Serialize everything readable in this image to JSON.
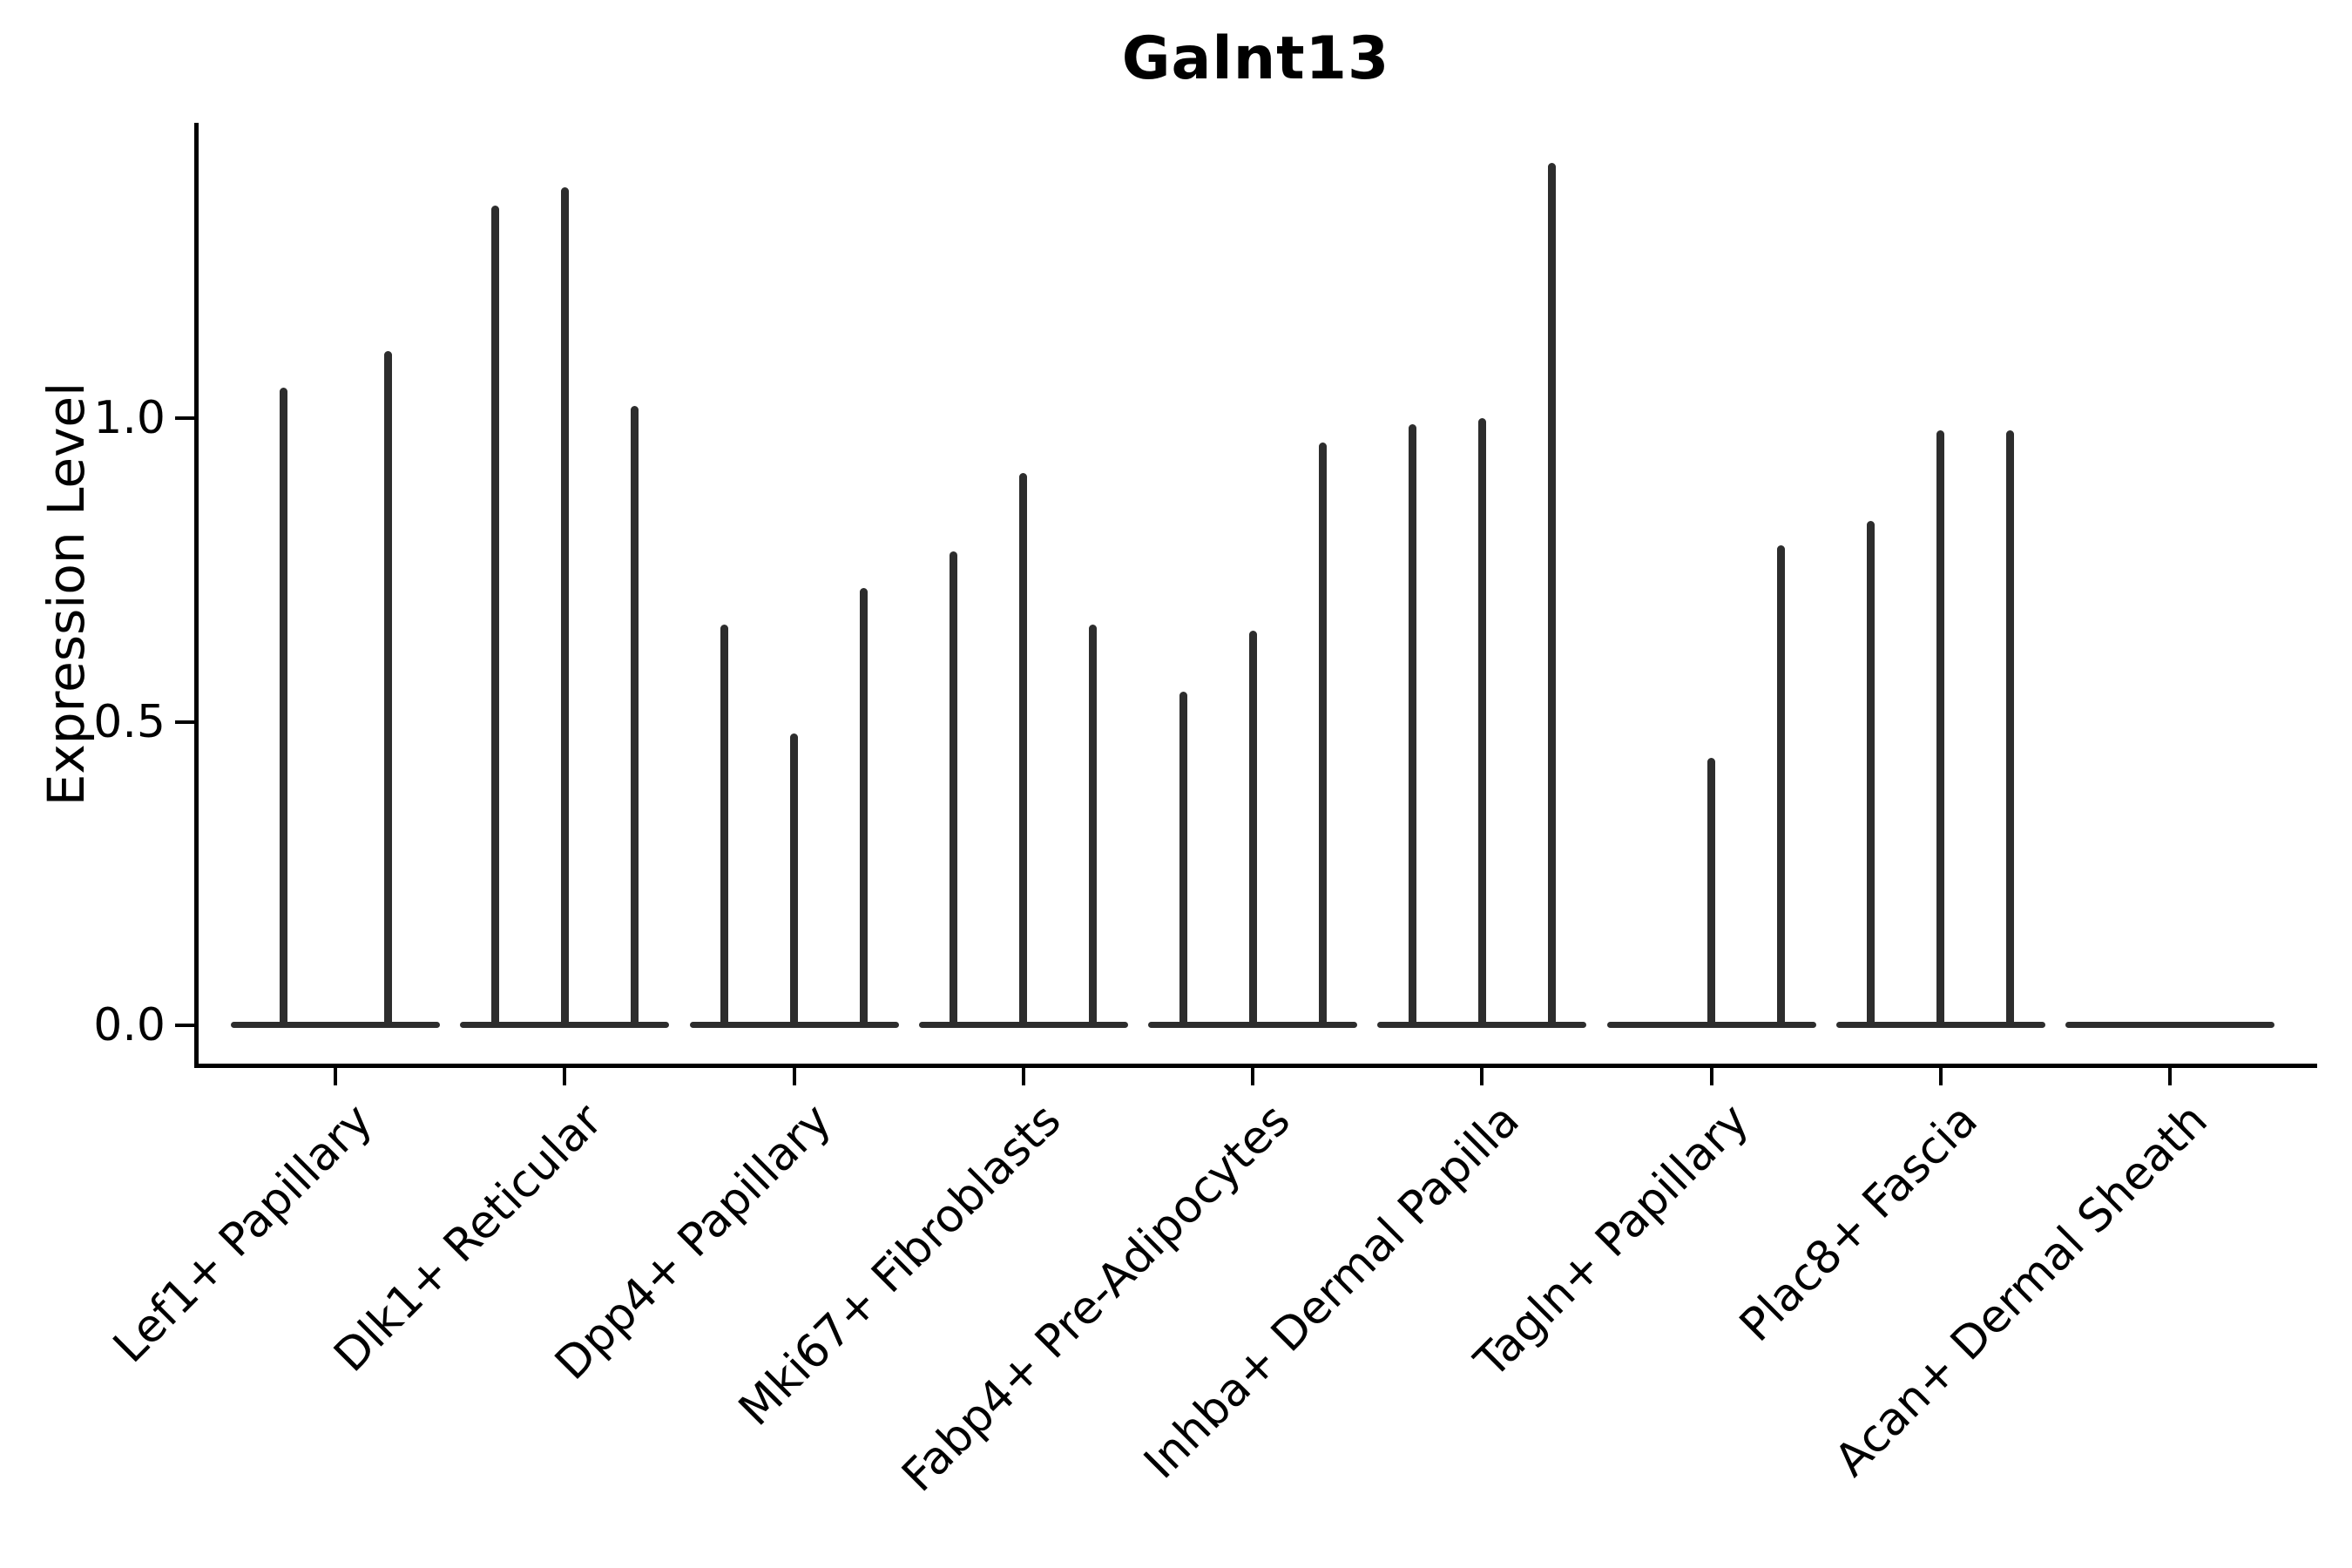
{
  "title": "Galnt13",
  "y_axis_label": "Expression Level",
  "chart_data": {
    "type": "violin",
    "title": "Galnt13",
    "xlabel": "",
    "ylabel": "Expression Level",
    "ytick_labels": [
      "0.0",
      "0.5",
      "1.0"
    ],
    "ytick_values": [
      0.0,
      0.5,
      1.0
    ],
    "ylim": [
      -0.066,
      1.486
    ],
    "grid": false,
    "legend": false,
    "violin_color": "#2d2d2d",
    "axis_color": "#000000",
    "categories": [
      "Lef1+ Papillary",
      "Dlk1+ Reticular",
      "Dpp4+ Papillary",
      "Mki67+ Fibroblasts",
      "Fabp4+ Pre-Adipocytes",
      "Inhba+ Dermal Papilla",
      "Tagln+ Papillary",
      "Plac8+ Fascia",
      "Acan+ Dermal Sheath"
    ],
    "groups": [
      {
        "category": "Lef1+ Papillary",
        "violin_offsets": [
          -60,
          60
        ],
        "violin_peaks": [
          1.05,
          1.11
        ],
        "baseline_halfwidth": 120
      },
      {
        "category": "Dlk1+ Reticular",
        "violin_offsets": [
          -80,
          0,
          80
        ],
        "violin_peaks": [
          1.35,
          1.38,
          1.02
        ],
        "baseline_halfwidth": 120
      },
      {
        "category": "Dpp4+ Papillary",
        "violin_offsets": [
          -80,
          0,
          80
        ],
        "violin_peaks": [
          0.66,
          0.48,
          0.72
        ],
        "baseline_halfwidth": 120
      },
      {
        "category": "Mki67+ Fibroblasts",
        "violin_offsets": [
          -80,
          0,
          80
        ],
        "violin_peaks": [
          0.78,
          0.91,
          0.66
        ],
        "baseline_halfwidth": 120
      },
      {
        "category": "Fabp4+ Pre-Adipocytes",
        "violin_offsets": [
          -80,
          0,
          80
        ],
        "violin_peaks": [
          0.55,
          0.65,
          0.96
        ],
        "baseline_halfwidth": 120
      },
      {
        "category": "Inhba+ Dermal Papilla",
        "violin_offsets": [
          -80,
          0,
          80
        ],
        "violin_peaks": [
          0.99,
          1.0,
          1.42
        ],
        "baseline_halfwidth": 120
      },
      {
        "category": "Tagln+ Papillary",
        "violin_offsets": [
          -80,
          0,
          80
        ],
        "violin_peaks": [
          0.0,
          0.44,
          0.79
        ],
        "baseline_halfwidth": 120
      },
      {
        "category": "Plac8+ Fascia",
        "violin_offsets": [
          -80,
          0,
          80
        ],
        "violin_peaks": [
          0.83,
          0.98,
          0.98
        ],
        "baseline_halfwidth": 120
      },
      {
        "category": "Acan+ Dermal Sheath",
        "violin_offsets": [],
        "violin_peaks": [],
        "baseline_halfwidth": 120
      }
    ]
  }
}
